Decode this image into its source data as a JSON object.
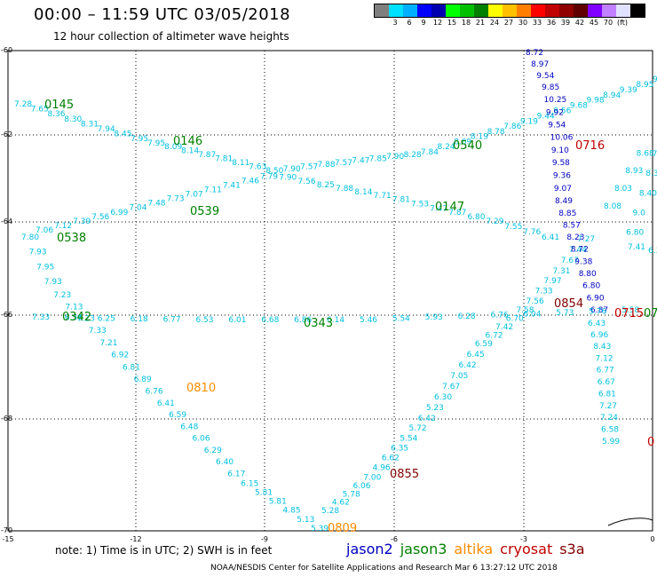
{
  "header": {
    "title": "00:00 – 11:59 UTC 03/05/2018",
    "subtitle": "12 hour collection of altimeter wave heights"
  },
  "colorbar": {
    "colors": [
      "#7f7f7f",
      "#00e0ff",
      "#00b0ff",
      "#0000ff",
      "#0000b0",
      "#00ff00",
      "#00c000",
      "#008000",
      "#ffff00",
      "#ffc000",
      "#ff8000",
      "#ff0000",
      "#c00000",
      "#900000",
      "#600000",
      "#8000ff",
      "#c080ff",
      "#e0e0ff",
      "#000000"
    ],
    "labels": [
      "3",
      "6",
      "9",
      "12",
      "15",
      "18",
      "21",
      "24",
      "27",
      "30",
      "33",
      "36",
      "39",
      "42",
      "45",
      "70",
      "(ft)"
    ]
  },
  "axes": {
    "lat_labels": [
      "-60",
      "-62",
      "-64",
      "-66",
      "-68",
      "-70"
    ],
    "lon_labels": [
      "-15",
      "-12",
      "-9",
      "-6",
      "-3",
      "0"
    ]
  },
  "satellite_colors": {
    "jason2": "#0000c0",
    "jason3": "#008000",
    "altika": "#ff8c00",
    "cryosat": "#c00000",
    "s3a": "#800000",
    "swh": "#00c0e0"
  },
  "track_labels": [
    {
      "text": "0145",
      "sat": "jason3"
    },
    {
      "text": "0146",
      "sat": "jason3"
    },
    {
      "text": "0539",
      "sat": "jason3"
    },
    {
      "text": "0538",
      "sat": "jason3"
    },
    {
      "text": "0342",
      "sat": "jason3"
    },
    {
      "text": "0343",
      "sat": "jason3"
    },
    {
      "text": "0540",
      "sat": "jason3"
    },
    {
      "text": "0147",
      "sat": "jason3"
    },
    {
      "text": "0716",
      "sat": "cryosat"
    },
    {
      "text": "0854",
      "sat": "s3a"
    },
    {
      "text": "0715",
      "sat": "cryosat"
    },
    {
      "text": "07",
      "sat": "jason3"
    },
    {
      "text": "0810",
      "sat": "altika"
    },
    {
      "text": "0855",
      "sat": "s3a"
    },
    {
      "text": "0809",
      "sat": "altika"
    },
    {
      "text": "0",
      "sat": "cryosat"
    }
  ],
  "swh_values": {
    "track1": [
      "7.28",
      "7.65",
      "8.36",
      "8.30",
      "8.31",
      "7.94",
      "8.45",
      "7.95",
      "7.95",
      "8.09",
      "8.14",
      "7.87",
      "7.81",
      "8.11",
      "7.63",
      "8.50",
      "7.90",
      "7.57",
      "7.88",
      "7.57",
      "7.47",
      "7.85",
      "7.90",
      "8.28",
      "7.84",
      "8.24",
      "8.09",
      "8.19",
      "8.78",
      "7.86",
      "9.19",
      "9.44",
      "9.56",
      "9.68",
      "9.98",
      "8.94",
      "9.39",
      "8.95",
      "9.9"
    ],
    "track2": [
      "7.80",
      "7.93",
      "7.95",
      "7.93",
      "7.23",
      "7.13",
      "7.23",
      "7.33",
      "7.21",
      "6.92",
      "6.81",
      "6.89",
      "6.76",
      "6.41",
      "6.59",
      "6.48",
      "6.06",
      "6.29",
      "6.40",
      "6.17",
      "6.15",
      "5.81",
      "5.81",
      "4.85",
      "5.13",
      "5.39"
    ],
    "track3": [
      "7.06",
      "7.12",
      "7.39",
      "7.56",
      "6.99",
      "7.04",
      "7.48",
      "7.73",
      "7.07",
      "7.11",
      "7.41",
      "7.46",
      "7.79",
      "7.90",
      "7.56",
      "8.25",
      "7.88",
      "8.14",
      "7.71",
      "7.81",
      "7.53",
      "7.47",
      "7.87",
      "6.80",
      "7.29",
      "7.55",
      "7.76",
      "6.41"
    ],
    "track4": [
      "5.28",
      "4.62",
      "5.78",
      "6.06",
      "7.00",
      "4.96",
      "6.62",
      "6.35",
      "5.54",
      "5.72",
      "6.42",
      "5.23",
      "6.30",
      "7.67",
      "7.05",
      "6.42",
      "6.45",
      "6.59",
      "6.72",
      "7.42",
      "6.70",
      "7.58",
      "7.56",
      "7.33",
      "7.97",
      "7.31",
      "7.67",
      "7.44",
      "7.27"
    ],
    "track5": [
      "8.72",
      "8.97",
      "9.54",
      "9.85",
      "10.25",
      "9.92",
      "9.54",
      "10.06",
      "9.10",
      "9.58",
      "9.36",
      "9.07",
      "8.49",
      "8.85",
      "8.57",
      "8.23",
      "8.72",
      "9.38",
      "8.80",
      "6.80",
      "6.90",
      "6.87"
    ],
    "track6": [
      "8.08",
      "8.03",
      "8.93",
      "8.68",
      "7.14",
      "8.32",
      "8.40",
      "9.0",
      "6.80",
      "7.41",
      "6.38"
    ],
    "track7": [
      "6.43",
      "6.96",
      "8.43",
      "7.12",
      "6.77",
      "6.67",
      "6.81",
      "7.27",
      "7.24",
      "6.58",
      "5.99"
    ],
    "track8": [
      "7.33",
      "6.56",
      "6.25",
      "6.18",
      "6.77",
      "6.53",
      "6.01",
      "6.68",
      "6.86",
      "6.14",
      "5.46",
      "5.54",
      "5.93",
      "6.28",
      "6.76",
      "6.04",
      "5.73",
      "5.76",
      "5.58"
    ]
  },
  "footer": {
    "note": "note: 1) Time is in UTC; 2) SWH is in feet",
    "satellites": [
      {
        "name": "jason2",
        "color": "#0000c0"
      },
      {
        "name": "jason3",
        "color": "#008000"
      },
      {
        "name": "altika",
        "color": "#ff8c00"
      },
      {
        "name": "cryosat",
        "color": "#c00000"
      },
      {
        "name": "s3a",
        "color": "#800000"
      }
    ],
    "credit": "NOAA/NESDIS Center for Satellite Applications and Research    Mar  6 13:27:12 UTC 2018"
  }
}
